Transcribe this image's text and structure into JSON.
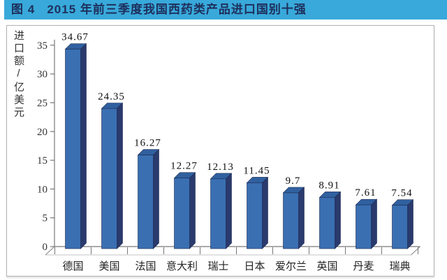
{
  "title": "图 4   2015 年前三季度我国西药类产品进口国别十强",
  "chart_data": {
    "type": "bar",
    "style": "3d-column",
    "title": "2015 年前三季度我国西药类产品进口国别十强",
    "categories": [
      "德国",
      "美国",
      "法国",
      "意大利",
      "瑞士",
      "日本",
      "爱尔兰",
      "英国",
      "丹麦",
      "瑞典"
    ],
    "values": [
      34.67,
      24.35,
      16.27,
      12.27,
      12.13,
      11.45,
      9.7,
      8.91,
      7.61,
      7.54
    ],
    "value_labels": [
      "34.67",
      "24.35",
      "16.27",
      "12.27",
      "12.13",
      "11.45",
      "9.7",
      "8.91",
      "7.61",
      "7.54"
    ],
    "xlabel": "",
    "ylabel": "进口额/亿美元",
    "yticks": [
      0,
      5,
      10,
      15,
      20,
      25,
      30,
      35
    ],
    "ylim": [
      0,
      35
    ],
    "grid": false,
    "legend": null
  },
  "colors": {
    "title_bg": "#38a9da",
    "title_text": "#1e2f5c",
    "bar_front": "#3a6fb2",
    "bar_side": "#2a3a6d",
    "bar_top": "#30609f",
    "bar_edge": "#1d2b52",
    "axis_line": "#777777",
    "floor_line": "#999999",
    "tick_text": "#333333",
    "value_text": "#111111",
    "category_text": "#222222",
    "frame_border": "#b3b3b3"
  }
}
